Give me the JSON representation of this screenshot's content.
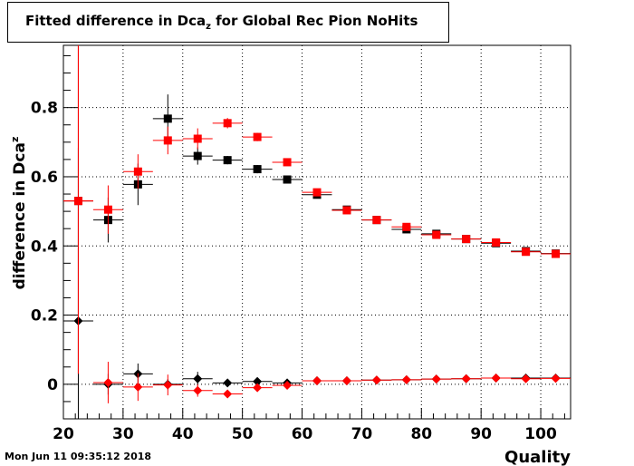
{
  "page": {
    "title_main": "Fitted difference in Dca",
    "title_sub": "z",
    "title_rest": " for Global Rec Pion NoHits",
    "timestamp": "Mon Jun 11 09:35:12 2018"
  },
  "chart_data": {
    "type": "scatter",
    "title": "Fitted difference in Dca_z for Global Rec Pion NoHits",
    "xlabel": "Quality",
    "ylabel_main": "difference in Dca",
    "ylabel_sub": "z",
    "xlim": [
      20,
      105
    ],
    "ylim": [
      -0.1,
      0.98
    ],
    "xticks": [
      20,
      30,
      40,
      50,
      60,
      70,
      80,
      90,
      100
    ],
    "yticks": [
      0,
      0.2,
      0.4,
      0.6,
      0.8
    ],
    "ytick_labels": [
      "0",
      "0.2",
      "0.4",
      "0.6",
      "0.8"
    ],
    "grid": true,
    "series": [
      {
        "color": "#000000",
        "marker": "square",
        "x": [
          22.5,
          27.5,
          32.5,
          37.5,
          42.5,
          47.5,
          52.5,
          57.5,
          62.5,
          67.5,
          72.5,
          77.5,
          82.5,
          87.5,
          92.5,
          97.5,
          102.5
        ],
        "y": [
          0.53,
          0.475,
          0.578,
          0.768,
          0.66,
          0.648,
          0.622,
          0.592,
          0.548,
          0.505,
          0.475,
          0.448,
          0.435,
          0.42,
          0.408,
          0.385,
          0.378
        ],
        "yerr": [
          0.5,
          0.065,
          0.06,
          0.07,
          0.025,
          0.012,
          0.012,
          0.008,
          0.007,
          0.006,
          0.006,
          0.006,
          0.005,
          0.005,
          0.005,
          0.005,
          0.005
        ]
      },
      {
        "color": "#ff0000",
        "marker": "square",
        "x": [
          22.5,
          27.5,
          32.5,
          37.5,
          42.5,
          47.5,
          52.5,
          57.5,
          62.5,
          67.5,
          72.5,
          77.5,
          82.5,
          87.5,
          92.5,
          97.5,
          102.5
        ],
        "y": [
          0.53,
          0.505,
          0.615,
          0.705,
          0.71,
          0.755,
          0.715,
          0.642,
          0.555,
          0.503,
          0.475,
          0.455,
          0.432,
          0.42,
          0.41,
          0.383,
          0.377
        ],
        "yerr": [
          0.5,
          0.07,
          0.05,
          0.04,
          0.03,
          0.015,
          0.012,
          0.01,
          0.008,
          0.007,
          0.006,
          0.006,
          0.005,
          0.005,
          0.005,
          0.005,
          0.005
        ]
      },
      {
        "color": "#000000",
        "marker": "diamond",
        "x": [
          22.5,
          27.5,
          32.5,
          37.5,
          42.5,
          47.5,
          52.5,
          57.5,
          62.5,
          67.5,
          72.5,
          77.5,
          82.5,
          87.5,
          92.5,
          97.5,
          102.5
        ],
        "y": [
          0.183,
          0.0,
          0.03,
          0.0,
          0.016,
          0.004,
          0.008,
          0.004,
          0.01,
          0.01,
          0.012,
          0.013,
          0.015,
          0.016,
          0.018,
          0.018,
          0.018
        ],
        "yerr": [
          0.5,
          0.03,
          0.03,
          0.015,
          0.02,
          0.008,
          0.006,
          0.005,
          0.004,
          0.004,
          0.003,
          0.003,
          0.003,
          0.003,
          0.003,
          0.003,
          0.003
        ]
      },
      {
        "color": "#ff0000",
        "marker": "diamond",
        "x": [
          22.5,
          27.5,
          32.5,
          37.5,
          42.5,
          47.5,
          52.5,
          57.5,
          62.5,
          67.5,
          72.5,
          77.5,
          82.5,
          87.5,
          92.5,
          97.5,
          102.5
        ],
        "y": [
          0.53,
          0.005,
          -0.008,
          -0.002,
          -0.018,
          -0.028,
          -0.01,
          -0.003,
          0.01,
          0.01,
          0.012,
          0.013,
          0.015,
          0.016,
          0.018,
          0.016,
          0.017
        ],
        "yerr": [
          0.5,
          0.06,
          0.04,
          0.03,
          0.018,
          0.01,
          0.007,
          0.005,
          0.004,
          0.004,
          0.003,
          0.003,
          0.003,
          0.003,
          0.003,
          0.003,
          0.003
        ]
      }
    ]
  }
}
